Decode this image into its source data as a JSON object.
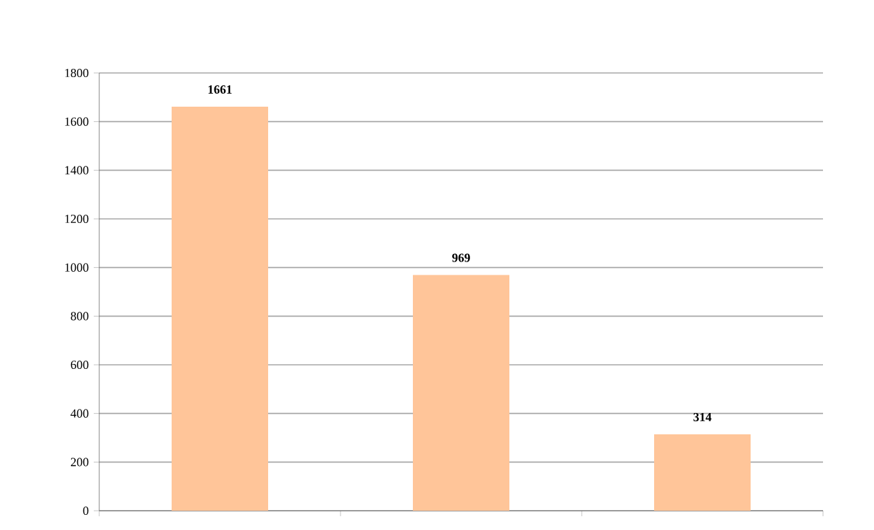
{
  "chart_data": {
    "type": "bar",
    "categories": [
      null,
      null,
      null
    ],
    "values": [
      1661,
      969,
      314
    ],
    "color": "#ffc599",
    "ylim": [
      0,
      1800
    ],
    "yticks": [
      0,
      200,
      400,
      600,
      800,
      1000,
      1200,
      1400,
      1600,
      1800
    ],
    "grid": "y",
    "data_labels": true
  }
}
